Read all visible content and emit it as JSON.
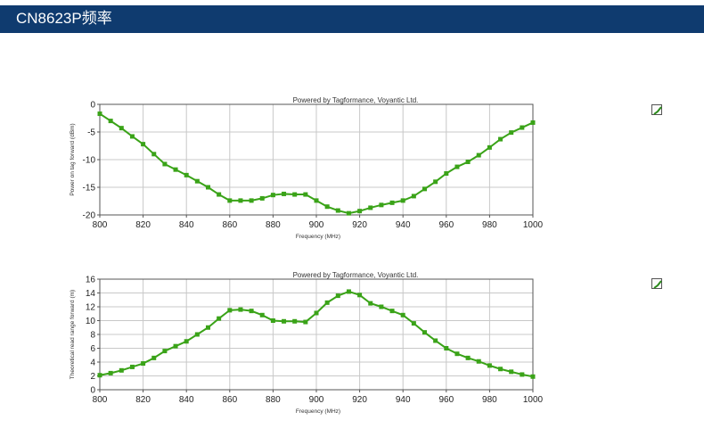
{
  "header": {
    "title": "CN8623P频率"
  },
  "colors": {
    "series": "#3aa318",
    "header_bg": "#0f3b6f",
    "grid": "#c8c8c8"
  },
  "icons": [
    "check-icon",
    "check-icon"
  ],
  "chart_data": [
    {
      "type": "line",
      "title": "",
      "credit": "Powered by Tagformance, Voyantic Ltd.",
      "xlabel": "Frequency (MHz)",
      "ylabel": "Power on tag forward (dBm)",
      "xlim": [
        800,
        1000
      ],
      "ylim": [
        -20,
        0
      ],
      "xticks": [
        800,
        820,
        840,
        860,
        880,
        900,
        920,
        940,
        960,
        980,
        1000
      ],
      "yticks": [
        0,
        -5,
        -10,
        -15,
        -20
      ],
      "ytick_labels": [
        "0",
        "-5",
        "-10",
        "-15",
        "-20"
      ],
      "grid": true,
      "series": [
        {
          "x": [
            800,
            805,
            810,
            815,
            820,
            825,
            830,
            835,
            840,
            845,
            850,
            855,
            860,
            865,
            870,
            875,
            880,
            885,
            890,
            895,
            900,
            905,
            910,
            915,
            920,
            925,
            930,
            935,
            940,
            945,
            950,
            955,
            960,
            965,
            970,
            975,
            980,
            985,
            990,
            995,
            1000
          ],
          "y": [
            -1.7,
            -3.0,
            -4.3,
            -5.8,
            -7.2,
            -9.0,
            -10.8,
            -11.8,
            -12.8,
            -13.9,
            -15.0,
            -16.3,
            -17.4,
            -17.4,
            -17.4,
            -17.0,
            -16.4,
            -16.2,
            -16.3,
            -16.3,
            -17.4,
            -18.5,
            -19.2,
            -19.7,
            -19.3,
            -18.7,
            -18.2,
            -17.8,
            -17.4,
            -16.6,
            -15.3,
            -14.0,
            -12.5,
            -11.3,
            -10.4,
            -9.2,
            -7.8,
            -6.3,
            -5.1,
            -4.2,
            -3.3
          ]
        }
      ]
    },
    {
      "type": "line",
      "title": "",
      "credit": "Powered by Tagformance, Voyantic Ltd.",
      "xlabel": "Frequency (MHz)",
      "ylabel": "Theoretical read range forward (m)",
      "xlim": [
        800,
        1000
      ],
      "ylim": [
        0,
        16
      ],
      "xticks": [
        800,
        820,
        840,
        860,
        880,
        900,
        920,
        940,
        960,
        980,
        1000
      ],
      "yticks": [
        0,
        2,
        4,
        6,
        8,
        10,
        12,
        14,
        16
      ],
      "ytick_labels": [
        "0",
        "2",
        "4",
        "6",
        "8",
        "10",
        "12",
        "14",
        "16"
      ],
      "grid": true,
      "series": [
        {
          "x": [
            800,
            805,
            810,
            815,
            820,
            825,
            830,
            835,
            840,
            845,
            850,
            855,
            860,
            865,
            870,
            875,
            880,
            885,
            890,
            895,
            900,
            905,
            910,
            915,
            920,
            925,
            930,
            935,
            940,
            945,
            950,
            955,
            960,
            965,
            970,
            975,
            980,
            985,
            990,
            995,
            1000
          ],
          "y": [
            2.1,
            2.4,
            2.8,
            3.3,
            3.8,
            4.6,
            5.6,
            6.3,
            7.0,
            8.0,
            9.0,
            10.3,
            11.5,
            11.6,
            11.4,
            10.8,
            10.0,
            9.9,
            9.9,
            9.8,
            11.1,
            12.6,
            13.6,
            14.2,
            13.7,
            12.5,
            12.0,
            11.4,
            10.8,
            9.6,
            8.3,
            7.1,
            6.0,
            5.2,
            4.6,
            4.1,
            3.5,
            3.0,
            2.6,
            2.2,
            1.9
          ]
        }
      ]
    }
  ]
}
